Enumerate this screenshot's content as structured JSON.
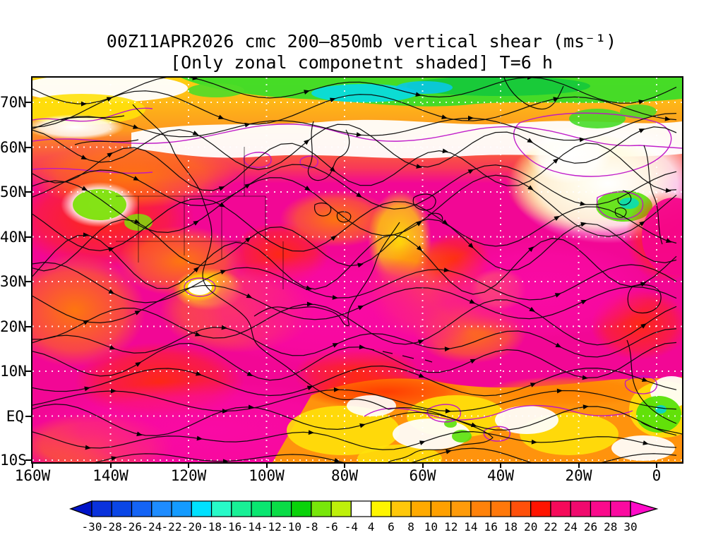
{
  "title": {
    "line1": "00Z11APR2026 cmc 200–850mb vertical shear (ms⁻¹)",
    "line2": "[Only zonal componetnt shaded] T=6 h"
  },
  "map": {
    "lat_ticks": [
      "70N",
      "60N",
      "50N",
      "40N",
      "30N",
      "20N",
      "10N",
      "EQ",
      "10S"
    ],
    "lon_ticks": [
      "160W",
      "140W",
      "120W",
      "100W",
      "80W",
      "60W",
      "40W",
      "20W",
      "0"
    ]
  },
  "colorbar": {
    "tick_labels": [
      "-30",
      "-28",
      "-26",
      "-24",
      "-22",
      "-20",
      "-18",
      "-16",
      "-14",
      "-12",
      "-10",
      "-8",
      "-6",
      "-4",
      "4",
      "6",
      "8",
      "10",
      "12",
      "14",
      "16",
      "18",
      "20",
      "22",
      "24",
      "26",
      "28",
      "30"
    ],
    "segment_colors": [
      "#0A32DC",
      "#0A46E6",
      "#1464F5",
      "#1E8CFF",
      "#149BFF",
      "#00E1FF",
      "#28FAC8",
      "#19F096",
      "#0AE670",
      "#0ADC46",
      "#0AD20A",
      "#78E60A",
      "#BEF00A",
      "#FFFFFF",
      "#FFF500",
      "#FFC80A",
      "#FFAA00",
      "#FFA000",
      "#FF9B0A",
      "#FF820A",
      "#FF780A",
      "#FF500A",
      "#FF1400",
      "#F50A5A",
      "#F00A6E",
      "#FA0A8C",
      "#FA0AA0"
    ],
    "below_arrow_color": "#0014C8",
    "above_arrow_color": "#FF0AC8"
  },
  "chart_data": {
    "type": "heatmap",
    "title": "00Z11APR2026 cmc 200–850mb vertical shear (ms⁻¹)",
    "subtitle": "[Only zonal componetnt shaded] T=6 h",
    "model": "cmc",
    "valid_time": "00Z11APR2026",
    "forecast_hour": "T=6 h",
    "units": "ms⁻¹",
    "field": "200–850mb vertical wind shear; zonal component shaded; shear streamlines with arrowheads overlaid; magenta contour lines",
    "x_axis": {
      "axis": "longitude",
      "ticks": [
        "160W",
        "140W",
        "120W",
        "100W",
        "80W",
        "60W",
        "40W",
        "20W",
        "0"
      ]
    },
    "y_axis": {
      "axis": "latitude",
      "ticks": [
        "70N",
        "60N",
        "50N",
        "40N",
        "30N",
        "20N",
        "10N",
        "EQ",
        "10S"
      ]
    },
    "shade_levels": [
      -30,
      -28,
      -26,
      -24,
      -22,
      -20,
      -18,
      -16,
      -14,
      -12,
      -10,
      -8,
      -6,
      -4,
      4,
      6,
      8,
      10,
      12,
      14,
      16,
      18,
      20,
      22,
      24,
      26,
      28,
      30
    ],
    "shade_colors": [
      "#0A32DC",
      "#0A46E6",
      "#1464F5",
      "#1E8CFF",
      "#149BFF",
      "#00E1FF",
      "#28FAC8",
      "#19F096",
      "#0AE670",
      "#0ADC46",
      "#0AD20A",
      "#78E60A",
      "#BEF00A",
      "#FFFFFF",
      "#FFF500",
      "#FFC80A",
      "#FFAA00",
      "#FFA000",
      "#FF9B0A",
      "#FF820A",
      "#FF780A",
      "#FF500A",
      "#FF1400",
      "#F50A5A",
      "#F00A6E",
      "#FA0A8C",
      "#FA0AA0"
    ],
    "legend_position": "bottom",
    "grid": "dotted white graticule every 10 deg latitude / 20 deg longitude",
    "notable_features": "westerly shear >26 ms⁻¹ (magenta) dominates subtropics and mid-latitudes; weak/negative (green-cyan) zonal shear band along 70N-75N; near-zero (white) bands near 60N and near the equator"
  }
}
